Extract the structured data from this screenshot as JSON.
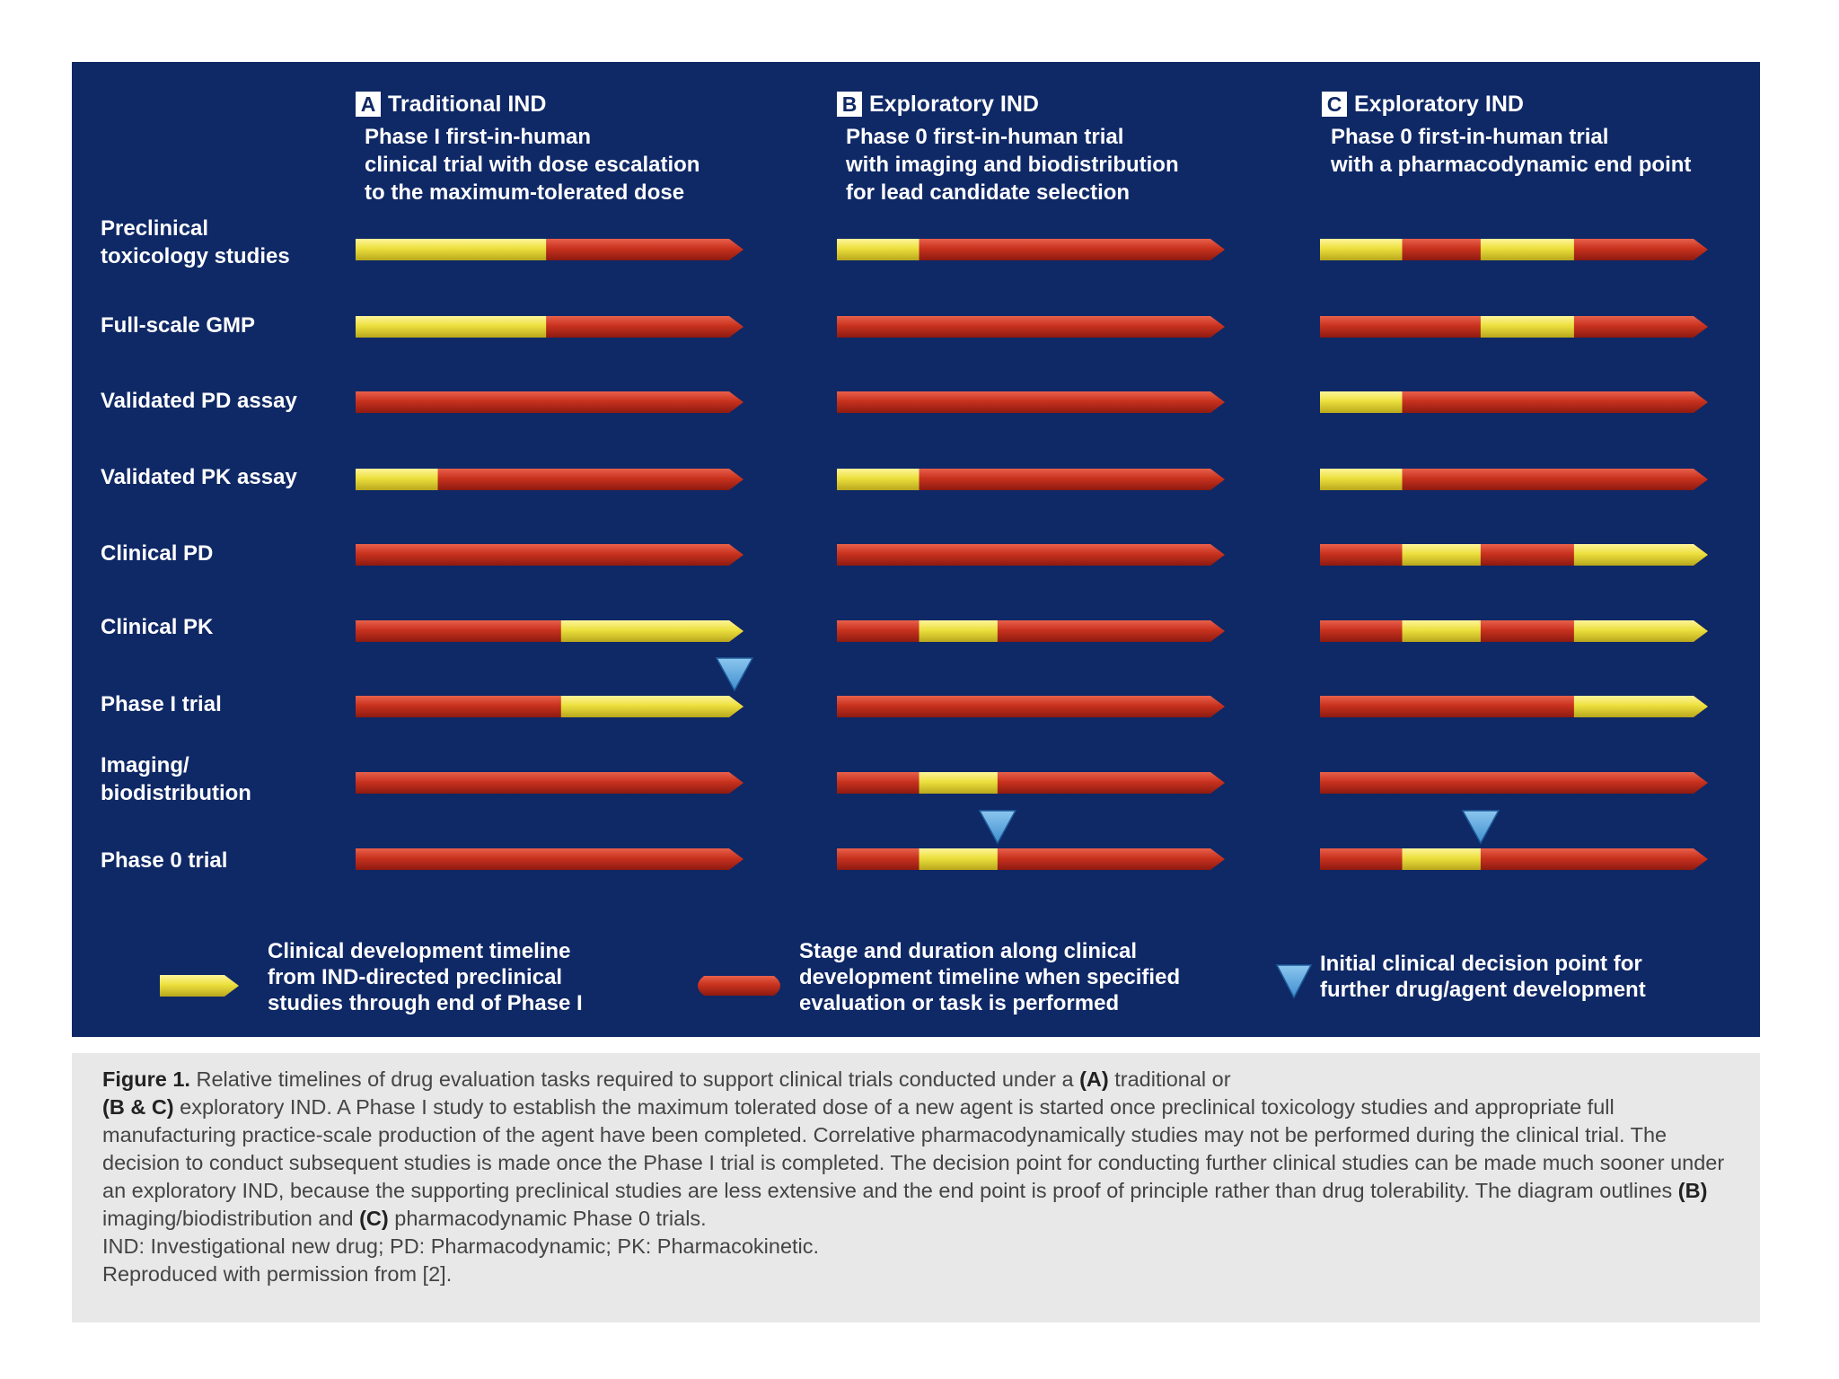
{
  "columns": [
    {
      "letter": "A",
      "title": "Traditional IND",
      "desc": [
        "Phase I first-in-human",
        "clinical trial with dose escalation",
        "to the maximum-tolerated dose"
      ]
    },
    {
      "letter": "B",
      "title": "Exploratory IND",
      "desc": [
        "Phase 0 first-in-human trial",
        "with imaging and biodistribution",
        "for lead candidate selection"
      ]
    },
    {
      "letter": "C",
      "title": "Exploratory IND",
      "desc": [
        "Phase 0 first-in-human trial",
        "with a pharmacodynamic end point"
      ]
    }
  ],
  "rows": [
    {
      "label": [
        "Preclinical",
        "toxicology studies"
      ],
      "segments": [
        [
          [
            0,
            0.51
          ]
        ],
        [
          [
            0,
            0.22
          ]
        ],
        [
          [
            0,
            0.22
          ],
          [
            0.43,
            0.68
          ]
        ]
      ]
    },
    {
      "label": [
        "Full-scale GMP"
      ],
      "segments": [
        [
          [
            0,
            0.51
          ]
        ],
        [],
        [
          [
            0.43,
            0.68
          ]
        ]
      ]
    },
    {
      "label": [
        "Validated PD assay"
      ],
      "segments": [
        [],
        [],
        [
          [
            0,
            0.22
          ]
        ]
      ]
    },
    {
      "label": [
        "Validated PK assay"
      ],
      "segments": [
        [
          [
            0,
            0.22
          ]
        ],
        [
          [
            0,
            0.22
          ]
        ],
        [
          [
            0,
            0.22
          ]
        ]
      ]
    },
    {
      "label": [
        "Clinical PD"
      ],
      "segments": [
        [],
        [],
        [
          [
            0.22,
            0.43
          ],
          [
            0.68,
            1
          ]
        ]
      ]
    },
    {
      "label": [
        "Clinical PK"
      ],
      "segments": [
        [
          [
            0.55,
            1
          ]
        ],
        [
          [
            0.22,
            0.43
          ]
        ],
        [
          [
            0.22,
            0.43
          ],
          [
            0.68,
            1
          ]
        ]
      ]
    },
    {
      "label": [
        "Phase I trial"
      ],
      "segments": [
        [
          [
            0.55,
            1
          ]
        ],
        [],
        [
          [
            0.68,
            1
          ]
        ]
      ]
    },
    {
      "label": [
        "Imaging/",
        "biodistribution"
      ],
      "segments": [
        [],
        [
          [
            0.22,
            0.43
          ]
        ],
        []
      ]
    },
    {
      "label": [
        "Phase 0 trial"
      ],
      "segments": [
        [],
        [
          [
            0.22,
            0.43
          ]
        ],
        [
          [
            0.22,
            0.43
          ]
        ]
      ]
    }
  ],
  "decision_points": [
    {
      "column": 0,
      "row": 6,
      "position": 1.0
    },
    {
      "column": 1,
      "row": 8,
      "position": 0.43
    },
    {
      "column": 2,
      "row": 8,
      "position": 0.43
    }
  ],
  "legend": {
    "yellow": [
      "Clinical development timeline",
      "from IND-directed preclinical",
      "studies through end of Phase I"
    ],
    "red": [
      "Stage and duration along clinical",
      "development timeline when specified",
      "evaluation or task is performed"
    ],
    "triangle": [
      "Initial clinical decision point for",
      "further drug/agent development"
    ]
  },
  "colors": {
    "panel": "#0f2866",
    "red": "#c8321e",
    "yellow": "#ece03e",
    "triangle": "#3f8fcf"
  },
  "caption": {
    "figure_label": "Figure 1.",
    "text_1": " Relative timelines of drug evaluation tasks required to support clinical trials conducted under a ",
    "bold_a": "(A)",
    "text_2": " traditional or",
    "bold_bc": "(B & C)",
    "text_3": " exploratory IND. A Phase I study to establish the maximum tolerated dose of a new agent is started once preclinical toxicology studies and appropriate full manufacturing practice-scale production of the agent have been completed. Correlative pharmacodynamically studies may not be performed during the clinical trial. The decision to conduct subsequent studies is made once the Phase I trial is completed. The decision point for conducting further clinical studies can be made much sooner under an exploratory IND, because the supporting preclinical studies are less extensive and the end point is proof of principle rather than drug tolerability. The diagram outlines ",
    "bold_b": "(B)",
    "text_4": " imaging/biodistribution and ",
    "bold_c": "(C)",
    "text_5": " pharmacodynamic Phase 0 trials.",
    "abbrev": "IND: Investigational new drug; PD: Pharmacodynamic; PK: Pharmacokinetic.",
    "permission": "Reproduced with permission from [2]."
  }
}
